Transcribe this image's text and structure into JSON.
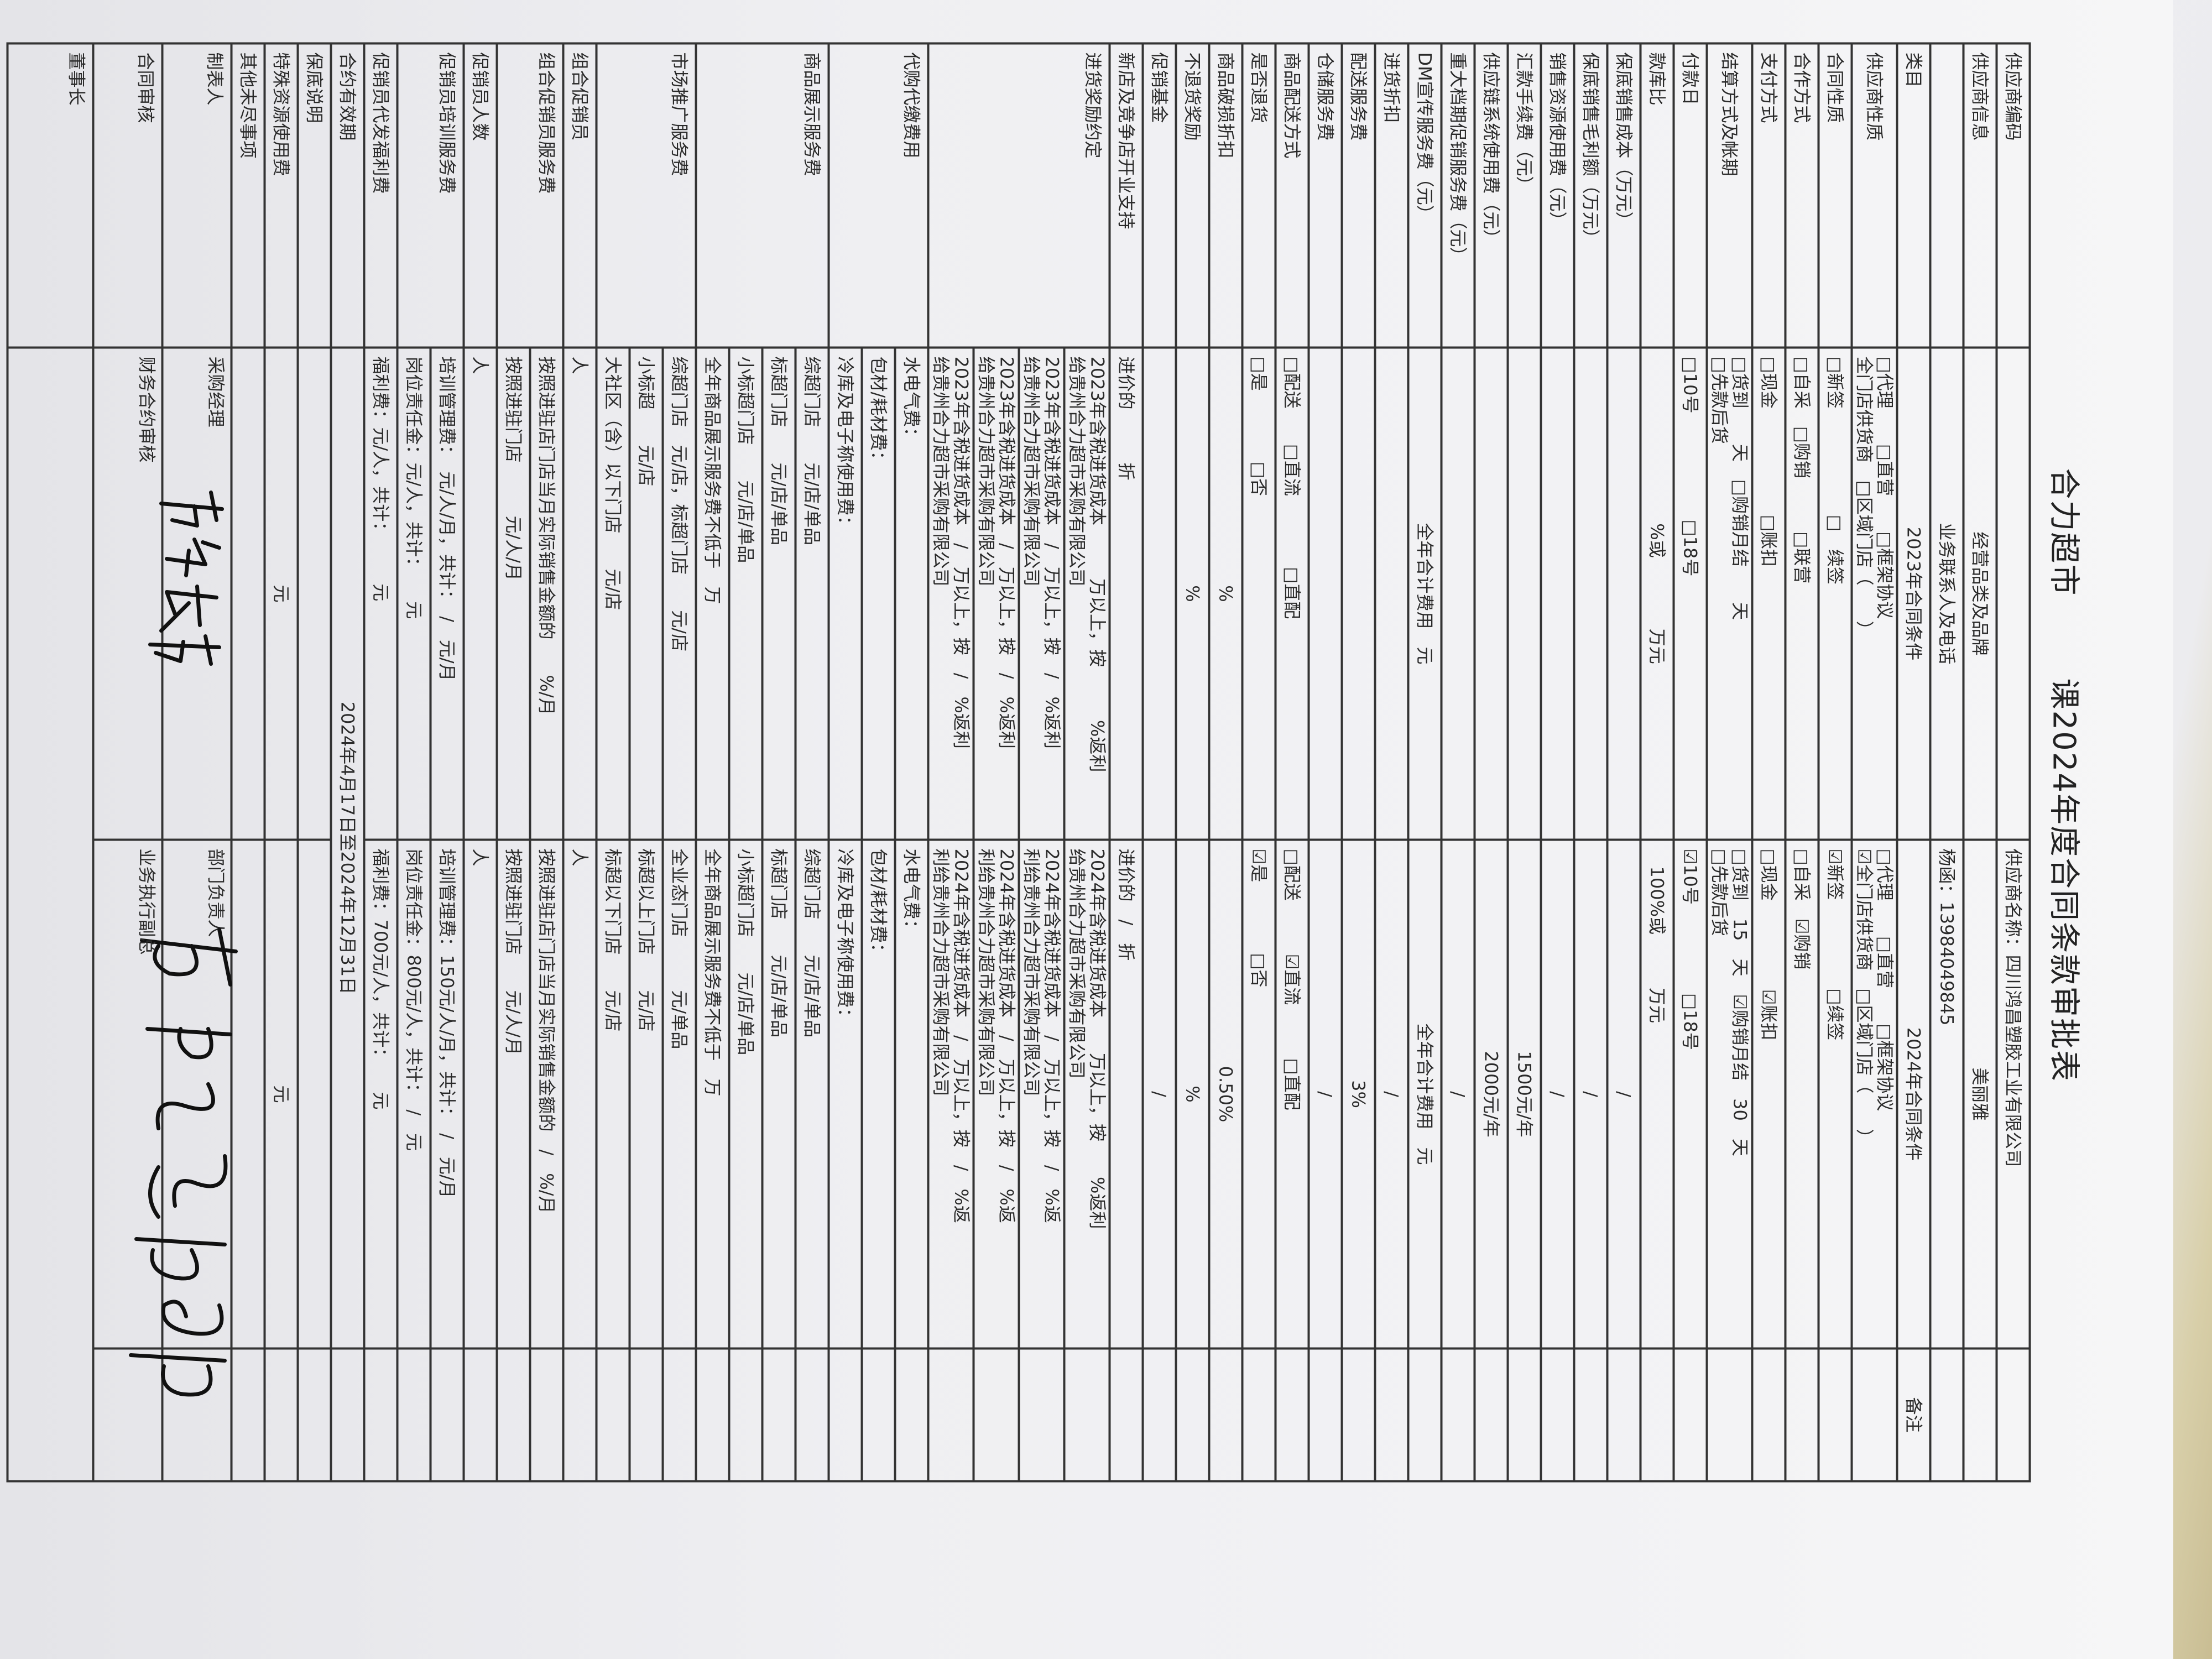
{
  "title": {
    "store": "合力超市",
    "form": "课2024年度合同条款审批表"
  },
  "main_rows": [
    {
      "label": "供应商编码",
      "y2023": "",
      "y2024": "供应商名称：四川鸿昌塑胶工业有限公司",
      "note": ""
    },
    {
      "label": "供应商信息",
      "y2023": "经营品类及品牌",
      "y2024": "美丽雅",
      "note": ""
    },
    {
      "label": "",
      "y2023": "业务联系人及电话",
      "y2024": "杨函：13984049845",
      "note": ""
    },
    {
      "label": "类目",
      "y2023": "2023年合同条件",
      "y2024": "2024年合同条件",
      "note": "备注"
    },
    {
      "label": "供应商性质",
      "y2023": "□代理　　□直营　　□框架协议\n全门店供货商　□区域门店（　　）",
      "y2024": "□代理　　□直营　　□框架协议\n☑全门店供货商　□区域门店（　　）",
      "note": ""
    },
    {
      "label": "合同性质",
      "y2023": "□新签　　　　　　□　续签",
      "y2024": "☑新签　　　　　□续签",
      "note": ""
    },
    {
      "label": "合作方式",
      "y2023": "□自采　□购销　　　□联营",
      "y2024": "□自采　☑购销",
      "note": ""
    },
    {
      "label": "支付方式",
      "y2023": "□现金　　　　　　□账扣",
      "y2024": "□现金　　　　　☑账扣",
      "note": ""
    },
    {
      "label": "结算方式及帐期",
      "y2023": "□货到　　天　□购销月结　　天\n□先款后货",
      "y2024": "□货到　15　天　☑购销月结　30　天\n□先款后货",
      "note": ""
    },
    {
      "label": "付款日",
      "y2023": "□10号　　　　　　□18号",
      "y2024": "☑10号　　　　　□18号",
      "note": ""
    },
    {
      "label": "款库比",
      "y2023": "%或　　　　万元",
      "y2024": "　100%或　　　万元",
      "note": ""
    },
    {
      "label": "保底销售成本（万元）",
      "y2023": "",
      "y2024": "/",
      "note": ""
    },
    {
      "label": "保底销售毛利额（万元）",
      "y2023": "",
      "y2024": "/",
      "note": ""
    },
    {
      "label": "销售资源使用费（元）",
      "y2023": "",
      "y2024": "/",
      "note": ""
    },
    {
      "label": "汇款手续费（元）",
      "y2023": "",
      "y2024": "1500元/年",
      "note": ""
    },
    {
      "label": "供应链系统使用费（元）",
      "y2023": "",
      "y2024": "2000元/年",
      "note": ""
    },
    {
      "label": "重大档期促销服务费（元）",
      "y2023": "",
      "y2024": "/",
      "note": ""
    },
    {
      "label": "DM宣传服务费（元）",
      "y2023": "全年合计费用　元",
      "y2024": "全年合计费用　元",
      "note": ""
    },
    {
      "label": "进货折扣",
      "y2023": "",
      "y2024": "/",
      "note": ""
    },
    {
      "label": "配送服务费",
      "y2023": "",
      "y2024": "3%",
      "note": ""
    },
    {
      "label": "仓储服务费",
      "y2023": "",
      "y2024": "/",
      "note": ""
    },
    {
      "label": "商品配送方式",
      "y2023": "□配送　　□直流　　　　□直配",
      "y2024": "□配送　　　☑直流　　　□直配",
      "note": ""
    },
    {
      "label": "是否退货",
      "y2023": "□是　　　　□否",
      "y2024": "☑是　　　　□否",
      "note": ""
    },
    {
      "label": "商品破损折扣",
      "y2023": "%",
      "y2024": "0.50%",
      "note": ""
    },
    {
      "label": "不退货奖励",
      "y2023": "%",
      "y2024": "%",
      "note": ""
    },
    {
      "label": "促销基金",
      "y2023": "",
      "y2024": "/",
      "note": ""
    },
    {
      "label": "新店及竞争店开业支持",
      "y2023": "进价的　　　折",
      "y2024": "进价的　/　折",
      "note": ""
    }
  ],
  "groups": [
    {
      "label": "进货奖励约定",
      "subs": [
        {
          "y2023": "2023年含税进货成本　　　万以上，按　　　%返利\n给贵州合力超市采购有限公司",
          "y2024": "2024年含税进货成本　　万以上，按　　%返利\n给贵州合力超市采购有限公司"
        },
        {
          "y2023": "2023年含税进货成本　/　万以上，按　/　%返利\n给贵州合力超市采购有限公司",
          "y2024": "2024年含税进货成本　/　万以上，按　/　%返\n利给贵州合力超市采购有限公司"
        },
        {
          "y2023": "2023年含税进货成本　/　万以上，按　/　%返利\n给贵州合力超市采购有限公司",
          "y2024": "2024年含税进货成本　/　万以上，按　/　%返\n利给贵州合力超市采购有限公司"
        },
        {
          "y2023": "2023年含税进货成本　/　万以上，按　/　%返利\n给贵州合力超市采购有限公司",
          "y2024": "2024年含税进货成本　/　万以上，按　/　%返\n利给贵州合力超市采购有限公司"
        }
      ]
    },
    {
      "label": "代购代缴费用",
      "subs": [
        {
          "y2023": "水电气费：",
          "y2024": "水电气费："
        },
        {
          "y2023": "包材/耗材费：",
          "y2024": "包材/耗材费："
        },
        {
          "y2023": "冷库及电子称使用费：",
          "y2024": "冷库及电子称使用费："
        }
      ]
    },
    {
      "label": "商品展示服务费",
      "subs": [
        {
          "y2023": "综超门店　　元/店/单品",
          "y2024": "综超门店　　元/店/单品"
        },
        {
          "y2023": "标超门店　　元/店/单品",
          "y2024": "标超门店　　元/店/单品"
        },
        {
          "y2023": "小标超门店　　元/店/单品",
          "y2024": "小标超门店　　元/店/单品"
        },
        {
          "y2023": "全年商品展示服务费不低于　万",
          "y2024": "全年商品展示服务费不低于　万"
        }
      ]
    },
    {
      "label": "市场推广服务费",
      "subs": [
        {
          "y2023": "综超门店　元/店，标超门店　　元/店",
          "y2024": "全业态门店　　　元/单品"
        },
        {
          "y2023": "小标超　　元/店",
          "y2024": "标超以上门店　　元/店"
        },
        {
          "y2023": "大社区（含）以下门店　　元/店",
          "y2024": "标超以下门店　　元/店"
        }
      ]
    },
    {
      "label": "组合促销员",
      "subs": [
        {
          "y2023": "人",
          "y2024": "人"
        }
      ]
    },
    {
      "label": "组合促销员服务费",
      "subs": [
        {
          "y2023": "按照进驻店门店当月实际销售金额的　　%/月",
          "y2024": "按照进驻店门店当月实际销售金额的　/　%/月"
        },
        {
          "y2023": "按照进驻门店　　　元/人/月",
          "y2024": "按照进驻门店　　元/人/月"
        }
      ]
    },
    {
      "label": "促销员人数",
      "subs": [
        {
          "y2023": "人",
          "y2024": "人"
        }
      ]
    },
    {
      "label": "促销员培训服务费",
      "subs": [
        {
          "y2023": "培训管理费：　元/人/月，共计：　/　元/月",
          "y2024": "培训管理费：150元/人/月，共计：　/　元/月"
        },
        {
          "y2023": "岗位责任金：元/人，共计：　　元",
          "y2024": "岗位责任金：800元/人，共计：　/　元"
        }
      ]
    },
    {
      "label": "促销员代发福利费",
      "subs": [
        {
          "y2023": "福利费：元/人，共计：　　　元",
          "y2024": "福利费：700元/人，共计：　　元"
        }
      ]
    }
  ],
  "validity": {
    "label": "合约有效期",
    "value": "2024年4月17日至2024年12月31日"
  },
  "tail_rows": [
    {
      "label": "保底说明",
      "y2023": "",
      "y2024": ""
    },
    {
      "label": "特殊资源使用费",
      "y2023": "元",
      "y2024": "元"
    },
    {
      "label": "其他未尽事项",
      "y2023": "",
      "y2024": ""
    }
  ],
  "approvals": {
    "prepared_by": {
      "label": "制表人",
      "left": "采购经理",
      "right": "部门负责人"
    },
    "contract_review": {
      "label": "合同审核",
      "left": "财务合约审核",
      "right": "业务执行副总"
    },
    "chairman": {
      "label": "董事长"
    }
  },
  "colors": {
    "ink": "#2a2a2a",
    "paper": "#f1f1f3",
    "signature": "#111111"
  }
}
